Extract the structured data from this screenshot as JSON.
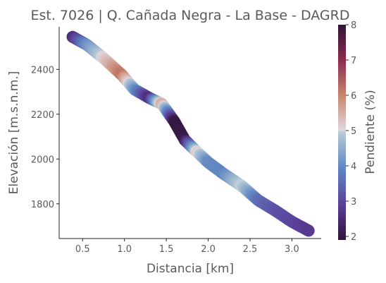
{
  "chart_data": {
    "type": "scatter",
    "title": "Est. 7026 | Q. Cañada Negra - La Base - DAGRD",
    "xlabel": "Distancia [km]",
    "ylabel": "Elevación [m.s.n.m.]",
    "colorbar_label": "Pendiente (%)",
    "xlim": [
      0.22,
      3.35
    ],
    "ylim": [
      1645,
      2590
    ],
    "xticks": [
      0.5,
      1.0,
      1.5,
      2.0,
      2.5,
      3.0
    ],
    "xtick_labels": [
      "0.5",
      "1.0",
      "1.5",
      "2.0",
      "2.5",
      "3.0"
    ],
    "yticks": [
      1800,
      2000,
      2200,
      2400
    ],
    "ytick_labels": [
      "1800",
      "2000",
      "2200",
      "2400"
    ],
    "clim": [
      1.9,
      8.0
    ],
    "cticks": [
      2,
      3,
      4,
      5,
      6,
      7,
      8
    ],
    "ctick_labels": [
      "2",
      "3",
      "4",
      "5",
      "6",
      "7",
      "8"
    ],
    "colormap": "twilight_shifted",
    "grid": false,
    "profile": {
      "x": [
        0.38,
        0.55,
        0.75,
        0.97,
        1.12,
        1.3,
        1.45,
        1.6,
        1.72,
        1.87,
        2.0,
        2.18,
        2.4,
        2.6,
        2.8,
        3.0,
        3.2
      ],
      "elevation": [
        2545,
        2510,
        2450,
        2375,
        2310,
        2272,
        2245,
        2165,
        2085,
        2030,
        1985,
        1935,
        1880,
        1815,
        1770,
        1720,
        1680
      ],
      "slope": [
        2.5,
        4.0,
        5.1,
        6.2,
        4.2,
        2.5,
        5.6,
        2.0,
        2.1,
        5.2,
        4.0,
        3.9,
        5.0,
        3.6,
        3.2,
        3.0,
        2.8
      ]
    }
  }
}
